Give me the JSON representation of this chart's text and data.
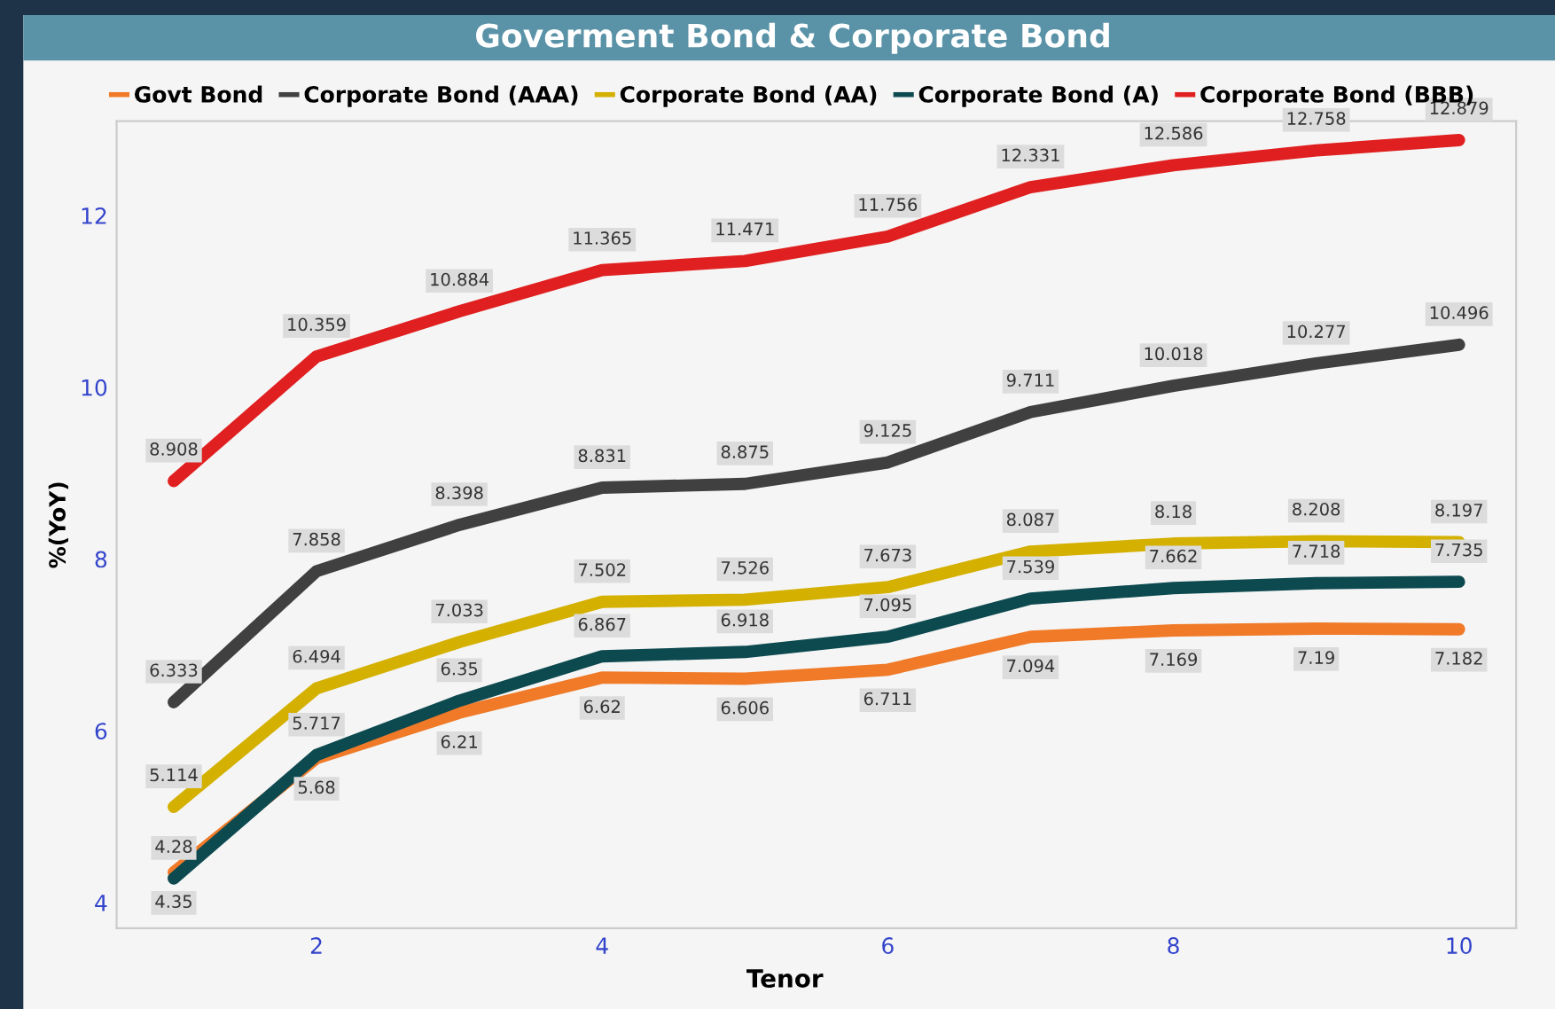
{
  "chart_data": {
    "type": "line",
    "title": "Goverment Bond & Corporate Bond",
    "xlabel": "Tenor",
    "ylabel": "%(YoY)",
    "x": [
      1,
      2,
      3,
      4,
      5,
      6,
      7,
      8,
      9,
      10
    ],
    "series": [
      {
        "name": "Govt Bond",
        "color": "#f07a28",
        "values": [
          4.35,
          5.68,
          6.21,
          6.62,
          6.606,
          6.711,
          7.094,
          7.169,
          7.19,
          7.182
        ]
      },
      {
        "name": "Corporate Bond (AAA)",
        "color": "#404040",
        "values": [
          6.333,
          7.858,
          8.398,
          8.831,
          8.875,
          9.125,
          9.711,
          10.018,
          10.277,
          10.496
        ]
      },
      {
        "name": "Corporate Bond (AA)",
        "color": "#d4b000",
        "values": [
          5.114,
          6.494,
          7.033,
          7.502,
          7.526,
          7.673,
          8.087,
          8.18,
          8.208,
          8.197
        ]
      },
      {
        "name": "Corporate Bond (A)",
        "color": "#0d4a50",
        "values": [
          4.28,
          5.717,
          6.35,
          6.867,
          6.918,
          7.095,
          7.539,
          7.662,
          7.718,
          7.735
        ]
      },
      {
        "name": "Corporate Bond (BBB)",
        "color": "#e02020",
        "values": [
          8.908,
          10.359,
          10.884,
          11.365,
          11.471,
          11.756,
          12.331,
          12.586,
          12.758,
          12.879
        ]
      }
    ],
    "xlim": [
      0.6,
      10.4
    ],
    "xticks": [
      2,
      4,
      6,
      8,
      10
    ],
    "ylim": [
      3.7,
      13.1
    ],
    "yticks": [
      4,
      6,
      8,
      10,
      12
    ],
    "grid": false,
    "legend": "top",
    "marker": "none",
    "line_style": "solid",
    "data_labels": true
  }
}
